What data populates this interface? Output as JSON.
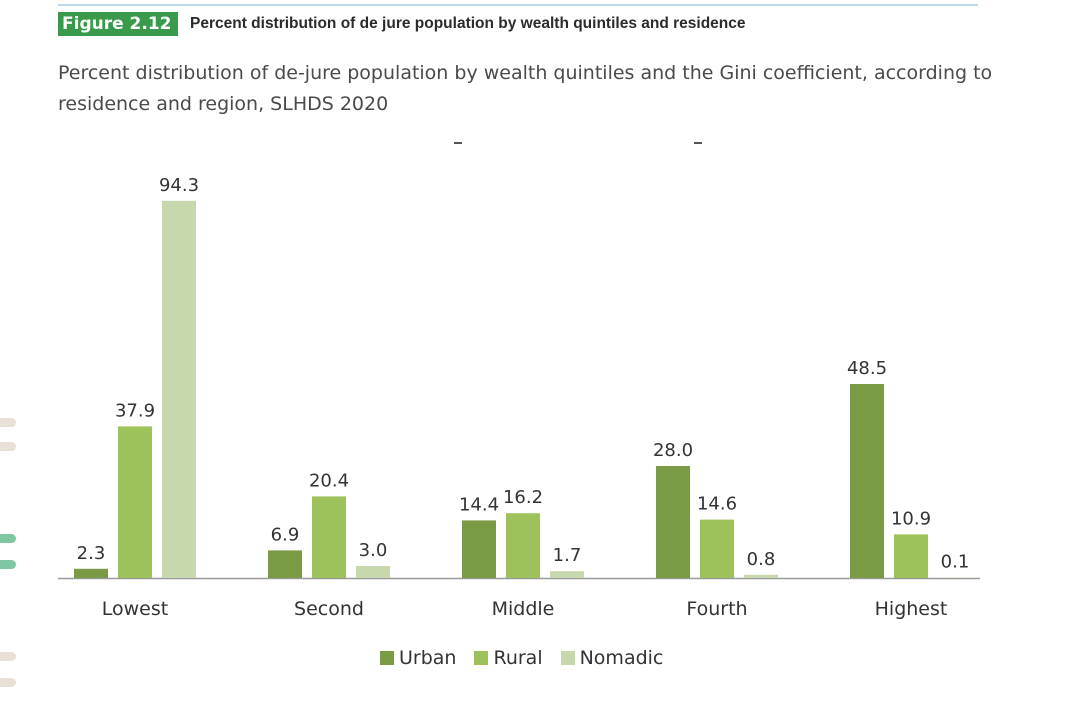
{
  "figure": {
    "tag": "Figure 2.12",
    "title": "Percent distribution of de jure population by wealth quintiles and residence",
    "subtitle": "Percent distribution of de-jure population by wealth quintiles and the Gini coefficient, according to residence and region, SLHDS 2020"
  },
  "colors": {
    "accent": "#3a9a4b",
    "urban": "#7a9a45",
    "rural": "#9dc25c",
    "nomadic": "#c8d8ad",
    "axis": "#999999"
  },
  "chart_data": {
    "type": "bar",
    "categories": [
      "Lowest",
      "Second",
      "Middle",
      "Fourth",
      "Highest"
    ],
    "series": [
      {
        "name": "Urban",
        "values": [
          2.3,
          6.9,
          14.4,
          28.0,
          48.5
        ]
      },
      {
        "name": "Rural",
        "values": [
          37.9,
          20.4,
          16.2,
          14.6,
          10.9
        ]
      },
      {
        "name": "Nomadic",
        "values": [
          94.3,
          3.0,
          1.7,
          0.8,
          0.1
        ]
      }
    ],
    "labels": [
      [
        "2.3",
        "6.9",
        "14.4",
        "28.0",
        "48.5"
      ],
      [
        "37.9",
        "20.4",
        "16.2",
        "14.6",
        "10.9"
      ],
      [
        "94.3",
        "3.0",
        "1.7",
        "0.8",
        "0.1"
      ]
    ],
    "ylim": [
      0,
      100
    ],
    "grid": false,
    "legend_position": "bottom-center"
  }
}
